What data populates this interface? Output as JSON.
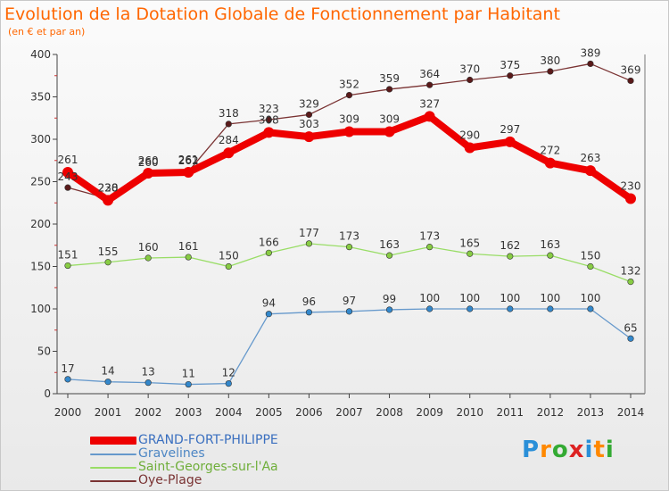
{
  "title": "Evolution de la Dotation Globale de Fonctionnement par Habitant",
  "subtitle": "(en € et par an)",
  "logo": {
    "letters": [
      "P",
      "r",
      "o",
      "x",
      "i",
      "t",
      "i"
    ],
    "colors": [
      "#2a8fd8",
      "#ff8800",
      "#33aa33",
      "#dd2222",
      "#2a8fd8",
      "#ff8800",
      "#33aa33"
    ]
  },
  "chart_data": {
    "type": "line",
    "title": "Evolution de la Dotation Globale de Fonctionnement par Habitant",
    "subtitle": "(en € et par an)",
    "xlabel": "",
    "ylabel": "",
    "x": [
      "2000",
      "2001",
      "2002",
      "2003",
      "2004",
      "2005",
      "2006",
      "2007",
      "2008",
      "2009",
      "2010",
      "2011",
      "2012",
      "2013",
      "2014"
    ],
    "ylim": [
      0,
      400
    ],
    "yticks": [
      0,
      50,
      100,
      150,
      200,
      250,
      300,
      350,
      400
    ],
    "ytick_labels": [
      "0",
      "50",
      "100",
      "150",
      "200",
      "250",
      "300",
      "350",
      "400"
    ],
    "grid": false,
    "legend_position": "bottom-left",
    "series": [
      {
        "name": "Oye-Plage",
        "color": "#7a3333",
        "marker_color": "#5a1a1a",
        "values": [
          243,
          230,
          260,
          262,
          318,
          323,
          329,
          352,
          359,
          364,
          370,
          375,
          380,
          389,
          369
        ],
        "labels": [
          "243",
          "230",
          "260",
          "262",
          "318",
          "323",
          "329",
          "352",
          "359",
          "364",
          "370",
          "375",
          "380",
          "389",
          "369"
        ]
      },
      {
        "name": "Saint-Georges-sur-l'Aa",
        "color": "#99dd66",
        "marker_color": "#88cc44",
        "values": [
          151,
          155,
          160,
          161,
          150,
          166,
          177,
          173,
          163,
          173,
          165,
          162,
          163,
          150,
          132
        ],
        "labels": [
          "151",
          "155",
          "160",
          "161",
          "150",
          "166",
          "177",
          "173",
          "163",
          "173",
          "165",
          "162",
          "163",
          "150",
          "132"
        ]
      },
      {
        "name": "Gravelines",
        "color": "#6699cc",
        "marker_color": "#3388cc",
        "values": [
          17,
          14,
          13,
          11,
          12,
          94,
          96,
          97,
          99,
          100,
          100,
          100,
          100,
          100,
          65
        ],
        "labels": [
          "17",
          "14",
          "13",
          "11",
          "12",
          "94",
          "96",
          "97",
          "99",
          "100",
          "100",
          "100",
          "100",
          "100",
          "65"
        ]
      },
      {
        "name": "GRAND-FORT-PHILIPPE",
        "color": "#ee0000",
        "marker_color": "#ee0000",
        "values": [
          261,
          228,
          260,
          261,
          284,
          308,
          303,
          309,
          309,
          327,
          290,
          297,
          272,
          263,
          230
        ],
        "labels": [
          "261",
          "228",
          "260",
          "261",
          "284",
          "308",
          "303",
          "309",
          "309",
          "327",
          "290",
          "297",
          "272",
          "263",
          "230"
        ]
      }
    ],
    "legend": [
      "GRAND-FORT-PHILIPPE",
      "Gravelines",
      "Saint-Georges-sur-l'Aa",
      "Oye-Plage"
    ]
  }
}
